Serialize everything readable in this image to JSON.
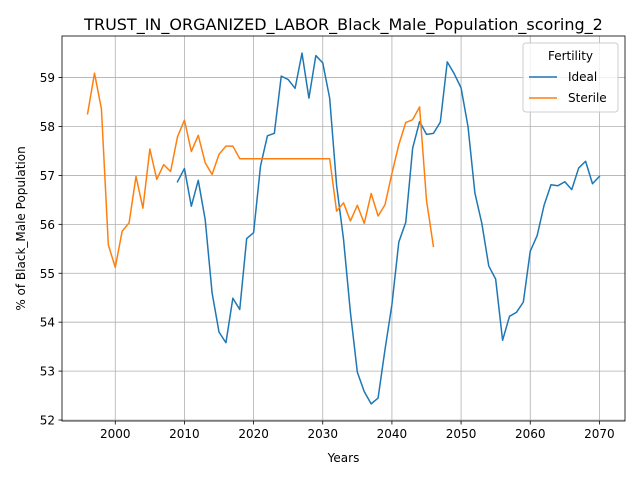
{
  "chart_data": {
    "type": "line",
    "title": "TRUST_IN_ORGANIZED_LABOR_Black_Male_Population_scoring_2",
    "xlabel": "Years",
    "ylabel": "% of Black_Male Population",
    "xlim": [
      1992.3,
      2073.7
    ],
    "ylim": [
      51.98,
      59.85
    ],
    "xticks": [
      2000,
      2010,
      2020,
      2030,
      2040,
      2050,
      2060,
      2070
    ],
    "yticks": [
      52,
      53,
      54,
      55,
      56,
      57,
      58,
      59
    ],
    "grid": true,
    "legend": {
      "title": "Fertility",
      "position": "top-right"
    },
    "series": [
      {
        "name": "Ideal",
        "color": "#1f77b4",
        "x": [
          2009,
          2010,
          2011,
          2012,
          2013,
          2014,
          2015,
          2016,
          2017,
          2018,
          2019,
          2020,
          2021,
          2022,
          2023,
          2024,
          2025,
          2026,
          2027,
          2028,
          2029,
          2030,
          2031,
          2032,
          2033,
          2034,
          2035,
          2036,
          2037,
          2038,
          2039,
          2040,
          2041,
          2042,
          2043,
          2044,
          2045,
          2046,
          2047,
          2048,
          2049,
          2050,
          2051,
          2052,
          2053,
          2054,
          2055,
          2056,
          2057,
          2058,
          2059,
          2060,
          2061,
          2062,
          2063,
          2064,
          2065,
          2066,
          2067,
          2068,
          2069,
          2070
        ],
        "y": [
          56.87,
          57.14,
          56.37,
          56.9,
          56.1,
          54.6,
          53.8,
          53.58,
          54.49,
          54.26,
          55.71,
          55.83,
          57.19,
          57.81,
          57.86,
          59.03,
          58.96,
          58.78,
          59.5,
          58.58,
          59.45,
          59.3,
          58.58,
          56.8,
          55.7,
          54.2,
          52.98,
          52.58,
          52.33,
          52.45,
          53.44,
          54.36,
          55.64,
          56.04,
          57.56,
          58.1,
          57.84,
          57.86,
          58.09,
          59.32,
          59.08,
          58.79,
          58.0,
          56.64,
          56.02,
          55.15,
          54.88,
          53.63,
          54.12,
          54.2,
          54.41,
          55.45,
          55.77,
          56.39,
          56.81,
          56.79,
          56.87,
          56.71,
          57.15,
          57.29,
          56.83,
          56.98
        ]
      },
      {
        "name": "Sterile",
        "color": "#ff7f0e",
        "x": [
          1996,
          1997,
          1998,
          1999,
          2000,
          2001,
          2002,
          2003,
          2004,
          2005,
          2006,
          2007,
          2008,
          2009,
          2010,
          2011,
          2012,
          2013,
          2014,
          2015,
          2016,
          2017,
          2018,
          2019,
          2020,
          2021,
          2022,
          2023,
          2024,
          2025,
          2026,
          2027,
          2028,
          2029,
          2030,
          2031,
          2032,
          2033,
          2034,
          2035,
          2036,
          2037,
          2038,
          2039,
          2040,
          2041,
          2042,
          2043,
          2044,
          2045,
          2046
        ],
        "y": [
          58.26,
          59.09,
          58.36,
          55.58,
          55.12,
          55.86,
          56.03,
          56.98,
          56.33,
          57.54,
          56.92,
          57.22,
          57.08,
          57.79,
          58.13,
          57.49,
          57.82,
          57.26,
          57.02,
          57.43,
          57.6,
          57.6,
          57.34,
          57.34,
          57.34,
          57.34,
          57.34,
          57.34,
          57.34,
          57.34,
          57.34,
          57.34,
          57.34,
          57.34,
          57.34,
          57.34,
          56.27,
          56.44,
          56.07,
          56.39,
          56.02,
          56.63,
          56.17,
          56.4,
          57.04,
          57.63,
          58.08,
          58.14,
          58.4,
          56.49,
          55.55
        ]
      }
    ]
  }
}
